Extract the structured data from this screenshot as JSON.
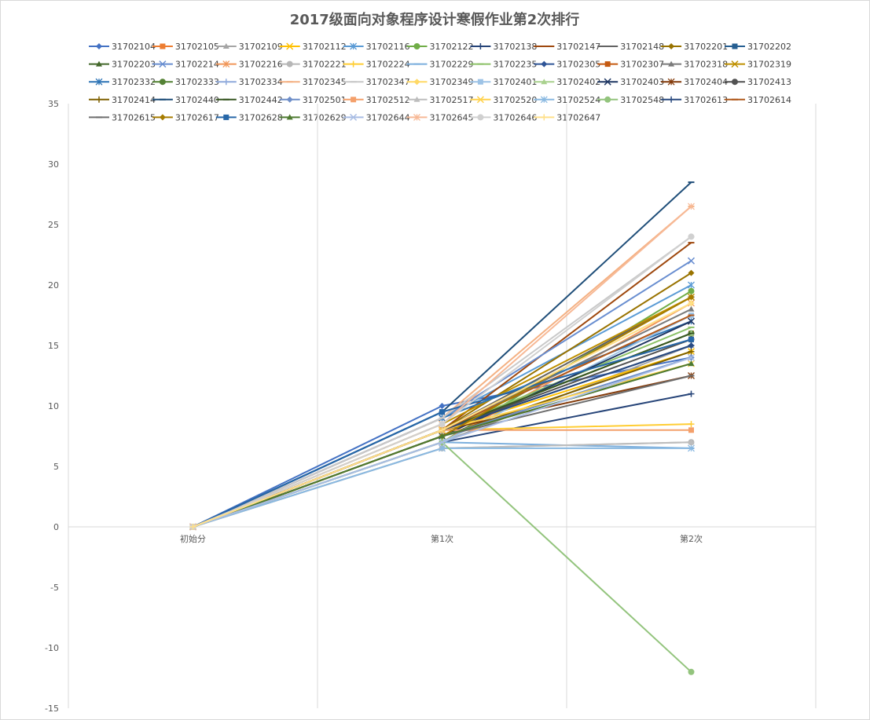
{
  "chart_data": {
    "type": "line",
    "title": "2017级面向对象程序设计寒假作业第2次排行",
    "xlabel": "",
    "ylabel": "",
    "categories": [
      "初始分",
      "第1次",
      "第2次"
    ],
    "ylim": [
      -15,
      35
    ],
    "yticks": [
      -15,
      -10,
      -5,
      0,
      5,
      10,
      15,
      20,
      25,
      30,
      35
    ],
    "grid": "vertical",
    "legend_position": "top",
    "series": [
      {
        "name": "31702104",
        "color": "#4472c4",
        "marker": "diamond",
        "values": [
          0,
          10,
          14
        ]
      },
      {
        "name": "31702105",
        "color": "#ed7d31",
        "marker": "square",
        "values": [
          0,
          8,
          17.5
        ]
      },
      {
        "name": "31702109",
        "color": "#a5a5a5",
        "marker": "triangle",
        "values": [
          0,
          7,
          15
        ]
      },
      {
        "name": "31702112",
        "color": "#ffc000",
        "marker": "x",
        "values": [
          0,
          8,
          14.5
        ]
      },
      {
        "name": "31702116",
        "color": "#5b9bd5",
        "marker": "star",
        "values": [
          0,
          9,
          20
        ]
      },
      {
        "name": "31702122",
        "color": "#70ad47",
        "marker": "circle",
        "values": [
          0,
          7,
          19.5
        ]
      },
      {
        "name": "31702138",
        "color": "#264478",
        "marker": "plus",
        "values": [
          0,
          7,
          11
        ]
      },
      {
        "name": "31702147",
        "color": "#9e480e",
        "marker": "dash",
        "values": [
          0,
          8,
          23.5
        ]
      },
      {
        "name": "31702148",
        "color": "#636363",
        "marker": "dash",
        "values": [
          0,
          8,
          19
        ]
      },
      {
        "name": "31702201",
        "color": "#997300",
        "marker": "diamond",
        "values": [
          0,
          8,
          21
        ]
      },
      {
        "name": "31702202",
        "color": "#255e91",
        "marker": "square",
        "values": [
          0,
          9.5,
          15.5
        ]
      },
      {
        "name": "31702203",
        "color": "#43682b",
        "marker": "triangle",
        "values": [
          0,
          7.5,
          13.5
        ]
      },
      {
        "name": "31702214",
        "color": "#698ed0",
        "marker": "x",
        "values": [
          0,
          9,
          22
        ]
      },
      {
        "name": "31702216",
        "color": "#f1975a",
        "marker": "star",
        "values": [
          0,
          7,
          18.5
        ]
      },
      {
        "name": "31702221",
        "color": "#b7b7b7",
        "marker": "circle",
        "values": [
          0,
          6.5,
          7
        ]
      },
      {
        "name": "31702224",
        "color": "#ffcd33",
        "marker": "plus",
        "values": [
          0,
          8,
          8.5
        ]
      },
      {
        "name": "31702229",
        "color": "#7cafdd",
        "marker": "dash",
        "values": [
          0,
          7,
          6.5
        ]
      },
      {
        "name": "31702235",
        "color": "#8cc168",
        "marker": "dash",
        "values": [
          0,
          8,
          16.5
        ]
      },
      {
        "name": "31702305",
        "color": "#2f5597",
        "marker": "diamond",
        "values": [
          0,
          8,
          15
        ]
      },
      {
        "name": "31702307",
        "color": "#c55a11",
        "marker": "square",
        "values": [
          0,
          8,
          16
        ]
      },
      {
        "name": "31702318",
        "color": "#7b7b7b",
        "marker": "triangle",
        "values": [
          0,
          8,
          18
        ]
      },
      {
        "name": "31702319",
        "color": "#bf9000",
        "marker": "x",
        "values": [
          0,
          8.5,
          19
        ]
      },
      {
        "name": "31702332",
        "color": "#2e75b6",
        "marker": "star",
        "values": [
          0,
          9,
          17
        ]
      },
      {
        "name": "31702333",
        "color": "#548235",
        "marker": "circle",
        "values": [
          0,
          8,
          16
        ]
      },
      {
        "name": "31702334",
        "color": "#8faadc",
        "marker": "plus",
        "values": [
          0,
          7.5,
          14
        ]
      },
      {
        "name": "31702345",
        "color": "#f4b183",
        "marker": "dash",
        "values": [
          0,
          9,
          26.5
        ]
      },
      {
        "name": "31702347",
        "color": "#c9c9c9",
        "marker": "dash",
        "values": [
          0,
          9,
          24
        ]
      },
      {
        "name": "31702349",
        "color": "#ffd966",
        "marker": "diamond",
        "values": [
          0,
          8,
          18.5
        ]
      },
      {
        "name": "31702401",
        "color": "#9dc3e6",
        "marker": "square",
        "values": [
          0,
          7,
          17.5
        ]
      },
      {
        "name": "31702402",
        "color": "#a9d18e",
        "marker": "triangle",
        "values": [
          0,
          8,
          16
        ]
      },
      {
        "name": "31702403",
        "color": "#203864",
        "marker": "x",
        "values": [
          0,
          7.5,
          17
        ]
      },
      {
        "name": "31702404",
        "color": "#843c0c",
        "marker": "star",
        "values": [
          0,
          8,
          12.5
        ]
      },
      {
        "name": "31702413",
        "color": "#525252",
        "marker": "circle",
        "values": [
          0,
          8,
          15.5
        ]
      },
      {
        "name": "31702414",
        "color": "#7f6000",
        "marker": "plus",
        "values": [
          0,
          7.5,
          14.5
        ]
      },
      {
        "name": "31702440",
        "color": "#1f4e79",
        "marker": "dash",
        "values": [
          0,
          9.5,
          28.5
        ]
      },
      {
        "name": "31702442",
        "color": "#385723",
        "marker": "dash",
        "values": [
          0,
          8,
          16
        ]
      },
      {
        "name": "31702501",
        "color": "#6f8fc9",
        "marker": "diamond",
        "values": [
          0,
          7.5,
          14
        ]
      },
      {
        "name": "31702512",
        "color": "#f4a06b",
        "marker": "square",
        "values": [
          0,
          8,
          8
        ]
      },
      {
        "name": "31702517",
        "color": "#bdbdbd",
        "marker": "triangle",
        "values": [
          0,
          6.5,
          7
        ]
      },
      {
        "name": "31702520",
        "color": "#ffd24d",
        "marker": "x",
        "values": [
          0,
          8,
          13.5
        ]
      },
      {
        "name": "31702524",
        "color": "#8ab9e1",
        "marker": "star",
        "values": [
          0,
          6.5,
          6.5
        ]
      },
      {
        "name": "31702548",
        "color": "#93c47d",
        "marker": "circle",
        "values": [
          0,
          7,
          -12
        ]
      },
      {
        "name": "31702613",
        "color": "#2a4a7f",
        "marker": "plus",
        "values": [
          0,
          8,
          15
        ]
      },
      {
        "name": "31702614",
        "color": "#b05a1e",
        "marker": "dash",
        "values": [
          0,
          8,
          17.5
        ]
      },
      {
        "name": "31702615",
        "color": "#6e6e6e",
        "marker": "dash",
        "values": [
          0,
          7.5,
          12.5
        ]
      },
      {
        "name": "31702617",
        "color": "#a67c00",
        "marker": "diamond",
        "values": [
          0,
          7.5,
          19
        ]
      },
      {
        "name": "31702628",
        "color": "#2767a8",
        "marker": "square",
        "values": [
          0,
          9.5,
          15.5
        ]
      },
      {
        "name": "31702629",
        "color": "#4e7a30",
        "marker": "triangle",
        "values": [
          0,
          7.5,
          13.5
        ]
      },
      {
        "name": "31702644",
        "color": "#a9bde4",
        "marker": "x",
        "values": [
          0,
          7,
          14
        ]
      },
      {
        "name": "31702645",
        "color": "#f7b996",
        "marker": "star",
        "values": [
          0,
          8.5,
          26.5
        ]
      },
      {
        "name": "31702646",
        "color": "#d0d0d0",
        "marker": "circle",
        "values": [
          0,
          8.5,
          24
        ]
      },
      {
        "name": "31702647",
        "color": "#ffe08a",
        "marker": "plus",
        "values": [
          0,
          8,
          18.5
        ]
      }
    ]
  }
}
